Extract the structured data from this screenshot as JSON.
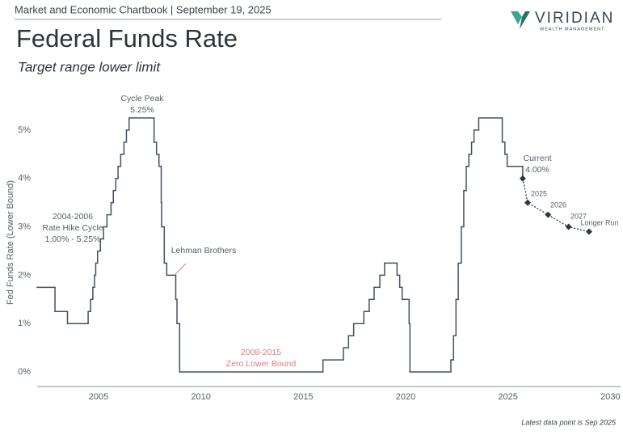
{
  "header": {
    "chartbook": "Market and Economic Chartbook | September 19, 2025",
    "brand": "VIRIDIAN",
    "brand_sub": "WEALTH MANAGEMENT"
  },
  "chart_data": {
    "type": "step",
    "title": "Federal Funds Rate",
    "subtitle": "Target range lower limit",
    "y_label": "Fed Funds Rate (Lower Bound)",
    "footnote": "Latest data point is Sep 2025",
    "xlim": [
      2002,
      2030.5
    ],
    "xticks": [
      2005,
      2010,
      2015,
      2020,
      2025,
      2030
    ],
    "ylim": [
      -0.3,
      5.7
    ],
    "yticks": [
      {
        "value": 0,
        "label": "0%"
      },
      {
        "value": 1,
        "label": "1%"
      },
      {
        "value": 2,
        "label": "2%"
      },
      {
        "value": 3,
        "label": "3%"
      },
      {
        "value": 4,
        "label": "4%"
      },
      {
        "value": 5,
        "label": "5%"
      }
    ],
    "grid": false,
    "series": [
      {
        "name": "Fed Funds Rate",
        "color": "#44505c",
        "style": "step",
        "x": [
          2002.0,
          2002.87,
          2003.48,
          2004.49,
          2004.61,
          2004.72,
          2004.8,
          2004.86,
          2004.95,
          2005.09,
          2005.24,
          2005.41,
          2005.61,
          2005.72,
          2005.84,
          2005.95,
          2006.08,
          2006.24,
          2006.36,
          2006.49,
          2007.71,
          2007.83,
          2007.95,
          2008.06,
          2008.08,
          2008.21,
          2008.33,
          2008.77,
          2008.83,
          2008.96,
          2015.96,
          2016.96,
          2017.21,
          2017.46,
          2017.96,
          2018.22,
          2018.46,
          2018.74,
          2018.97,
          2019.58,
          2019.71,
          2019.83,
          2020.17,
          2020.21,
          2022.21,
          2022.34,
          2022.46,
          2022.57,
          2022.72,
          2022.84,
          2022.96,
          2023.09,
          2023.22,
          2023.34,
          2023.57,
          2024.72,
          2024.85,
          2024.96,
          2025.72
        ],
        "values": [
          1.75,
          1.25,
          1.0,
          1.25,
          1.5,
          1.75,
          2.0,
          2.25,
          2.5,
          2.75,
          3.0,
          3.25,
          3.5,
          3.75,
          4.0,
          4.25,
          4.5,
          4.75,
          5.0,
          5.25,
          4.75,
          4.5,
          4.25,
          3.5,
          3.0,
          2.25,
          2.0,
          1.5,
          1.0,
          0,
          0.25,
          0.5,
          0.75,
          1.0,
          1.25,
          1.5,
          1.75,
          2.0,
          2.25,
          2.0,
          1.75,
          1.5,
          1.0,
          0,
          0.25,
          0.75,
          1.5,
          2.25,
          3.0,
          3.75,
          4.25,
          4.5,
          4.75,
          5.0,
          5.25,
          4.75,
          4.5,
          4.25,
          4.0
        ]
      },
      {
        "name": "Projection",
        "color": "#2f3942",
        "style": "dotted",
        "x": [
          2025.72,
          2025.96,
          2026.96,
          2027.96,
          2028.96
        ],
        "values": [
          4.0,
          3.5,
          3.25,
          3.0,
          2.9
        ]
      }
    ],
    "annotations": [
      {
        "lines": [
          "Cycle Peak",
          "5.25%"
        ],
        "color": "#555f68"
      },
      {
        "lines": [
          "2004-2006",
          "Rate Hike Cycle",
          "1.00% - 5.25%"
        ],
        "color": "#555f68"
      },
      {
        "lines": [
          "Lehman Brothers"
        ],
        "color": "#555f68"
      },
      {
        "lines": [
          "2008-2015",
          "Zero Lower Bound"
        ],
        "color": "#e07b7b"
      },
      {
        "lines": [
          "Current",
          "4.00%"
        ],
        "color": "#555f68"
      },
      {
        "lines": [
          "2025"
        ],
        "color": "#555f68"
      },
      {
        "lines": [
          "2026"
        ],
        "color": "#555f68"
      },
      {
        "lines": [
          "2027"
        ],
        "color": "#555f68"
      },
      {
        "lines": [
          "Longer Run"
        ],
        "color": "#555f68"
      }
    ]
  }
}
